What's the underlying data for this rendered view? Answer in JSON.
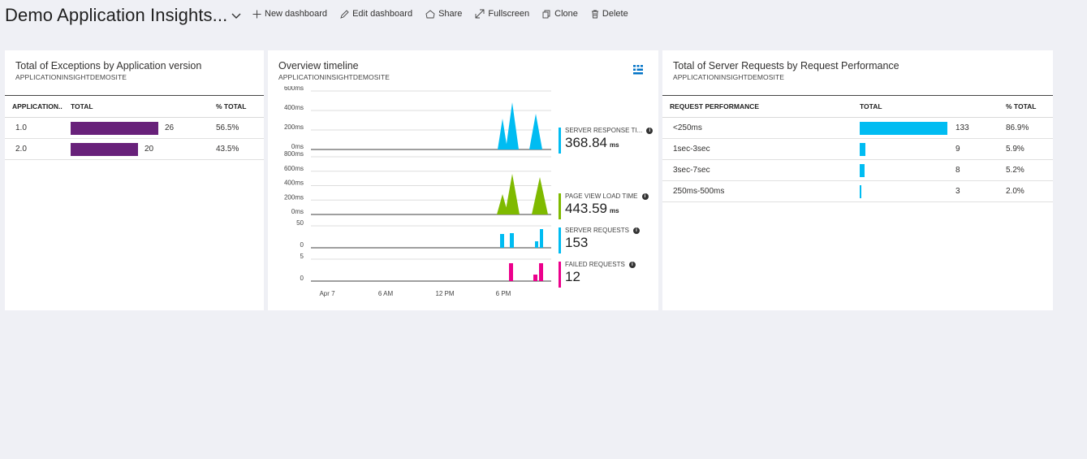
{
  "header": {
    "title": "Demo Application Insights...",
    "commands": [
      {
        "label": "New dashboard",
        "icon": "plus-icon"
      },
      {
        "label": "Edit dashboard",
        "icon": "pencil-icon"
      },
      {
        "label": "Share",
        "icon": "share-icon"
      },
      {
        "label": "Fullscreen",
        "icon": "fullscreen-icon"
      },
      {
        "label": "Clone",
        "icon": "clone-icon"
      },
      {
        "label": "Delete",
        "icon": "trash-icon"
      }
    ]
  },
  "tile1": {
    "title": "Total of Exceptions by Application version",
    "subtitle": "APPLICATIONINSIGHTDEMOSITE",
    "columns": [
      "APPLICATION..",
      "TOTAL",
      "% TOTAL"
    ],
    "bar_color": "#68217a",
    "rows": [
      {
        "name": "1.0",
        "total": "26",
        "pct": "56.5%",
        "value": 26
      },
      {
        "name": "2.0",
        "total": "20",
        "pct": "43.5%",
        "value": 20
      }
    ]
  },
  "tile2": {
    "title": "Overview timeline",
    "subtitle": "APPLICATIONINSIGHTDEMOSITE",
    "x_ticks": [
      "Apr 7",
      "6 AM",
      "12 PM",
      "6 PM"
    ],
    "chart_data": [
      {
        "type": "area",
        "name": "SERVER RESPONSE TI...",
        "color": "#00bcf2",
        "y_ticks": [
          "600ms",
          "400ms",
          "200ms",
          "0ms"
        ],
        "ylim": [
          0,
          600
        ],
        "value": "368.84",
        "unit": "ms"
      },
      {
        "type": "area",
        "name": "PAGE VIEW LOAD TIME",
        "color": "#7fba00",
        "y_ticks": [
          "800ms",
          "600ms",
          "400ms",
          "200ms",
          "0ms"
        ],
        "ylim": [
          0,
          800
        ],
        "value": "443.59",
        "unit": "ms"
      },
      {
        "type": "bar",
        "name": "SERVER REQUESTS",
        "color": "#00bcf2",
        "y_ticks": [
          "50",
          "0"
        ],
        "ylim": [
          0,
          50
        ],
        "value": "153",
        "unit": ""
      },
      {
        "type": "bar",
        "name": "FAILED REQUESTS",
        "color": "#ec008c",
        "y_ticks": [
          "5",
          "0"
        ],
        "ylim": [
          0,
          5
        ],
        "value": "12",
        "unit": ""
      }
    ]
  },
  "tile3": {
    "title": "Total of Server Requests by Request Performance",
    "subtitle": "APPLICATIONINSIGHTDEMOSITE",
    "columns": [
      "REQUEST PERFORMANCE",
      "TOTAL",
      "% TOTAL"
    ],
    "bar_color": "#00bcf2",
    "rows": [
      {
        "name": "<250ms",
        "total": "133",
        "pct": "86.9%",
        "value": 133
      },
      {
        "name": "1sec-3sec",
        "total": "9",
        "pct": "5.9%",
        "value": 9
      },
      {
        "name": "3sec-7sec",
        "total": "8",
        "pct": "5.2%",
        "value": 8
      },
      {
        "name": "250ms-500ms",
        "total": "3",
        "pct": "2.0%",
        "value": 3
      }
    ]
  }
}
